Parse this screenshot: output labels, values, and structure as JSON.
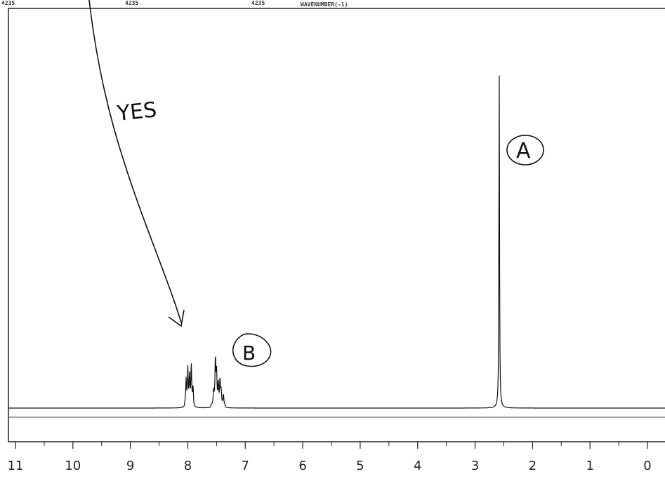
{
  "header": {
    "left_stub": "4235",
    "mid_stub1": "4235",
    "mid_stub2": "4235",
    "axis_caption": "WAVENUMBER(-1)"
  },
  "annotations": {
    "yes": "YES",
    "peak_a": "A",
    "peak_b": "B"
  },
  "chart_data": {
    "type": "line",
    "title": "",
    "xlabel": "",
    "ylabel": "",
    "x_reversed": true,
    "xlim": [
      11,
      0
    ],
    "ylim": [
      0,
      100
    ],
    "grid": false,
    "x_ticks": [
      "11",
      "10",
      "9",
      "8",
      "7",
      "6",
      "5",
      "4",
      "3",
      "2",
      "1",
      "0"
    ],
    "peaks": [
      {
        "ppm": 8.03,
        "height": 7
      },
      {
        "ppm": 8.0,
        "height": 10
      },
      {
        "ppm": 7.97,
        "height": 8
      },
      {
        "ppm": 7.94,
        "height": 11
      },
      {
        "ppm": 7.91,
        "height": 5
      },
      {
        "ppm": 7.55,
        "height": 4
      },
      {
        "ppm": 7.52,
        "height": 13
      },
      {
        "ppm": 7.5,
        "height": 9
      },
      {
        "ppm": 7.47,
        "height": 6
      },
      {
        "ppm": 7.44,
        "height": 7
      },
      {
        "ppm": 7.42,
        "height": 4
      },
      {
        "ppm": 7.38,
        "height": 3
      },
      {
        "ppm": 2.58,
        "height": 94
      }
    ]
  }
}
